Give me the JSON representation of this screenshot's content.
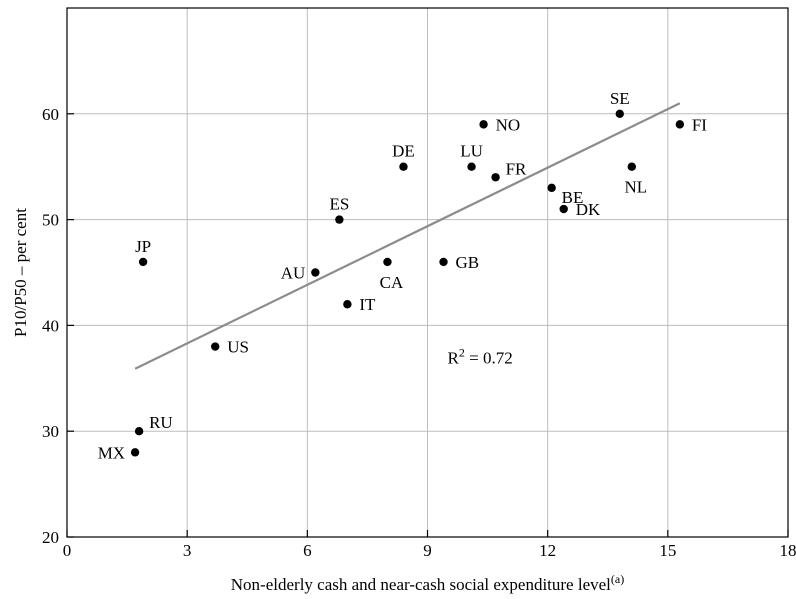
{
  "chart_data": {
    "type": "scatter",
    "xlabel": "Non-elderly cash and near-cash social expenditure level",
    "xlabel_superscript": "(a)",
    "ylabel": "P10/P50 – per cent",
    "xlim": [
      0,
      18
    ],
    "ylim": [
      20,
      70
    ],
    "x_ticks": [
      0,
      3,
      6,
      9,
      12,
      15,
      18
    ],
    "y_ticks": [
      20,
      30,
      40,
      50,
      60
    ],
    "grid": true,
    "points": [
      {
        "label": "JP",
        "x": 1.9,
        "y": 46,
        "label_pos": "above"
      },
      {
        "label": "RU",
        "x": 1.8,
        "y": 30,
        "label_pos": "upper-right"
      },
      {
        "label": "MX",
        "x": 1.7,
        "y": 28,
        "label_pos": "left"
      },
      {
        "label": "US",
        "x": 3.7,
        "y": 38,
        "label_pos": "right"
      },
      {
        "label": "AU",
        "x": 6.2,
        "y": 45,
        "label_pos": "left"
      },
      {
        "label": "ES",
        "x": 6.8,
        "y": 50,
        "label_pos": "above"
      },
      {
        "label": "IT",
        "x": 7.0,
        "y": 42,
        "label_pos": "right"
      },
      {
        "label": "CA",
        "x": 8.0,
        "y": 46,
        "label_pos": "below"
      },
      {
        "label": "DE",
        "x": 8.4,
        "y": 55,
        "label_pos": "above"
      },
      {
        "label": "GB",
        "x": 9.4,
        "y": 46,
        "label_pos": "right"
      },
      {
        "label": "LU",
        "x": 10.1,
        "y": 55,
        "label_pos": "above"
      },
      {
        "label": "NO",
        "x": 10.4,
        "y": 59,
        "label_pos": "right"
      },
      {
        "label": "FR",
        "x": 10.7,
        "y": 54,
        "label_pos": "upper-right"
      },
      {
        "label": "BE",
        "x": 12.1,
        "y": 53,
        "label_pos": "lower-right"
      },
      {
        "label": "DK",
        "x": 12.4,
        "y": 51,
        "label_pos": "right"
      },
      {
        "label": "SE",
        "x": 13.8,
        "y": 60,
        "label_pos": "above"
      },
      {
        "label": "NL",
        "x": 14.1,
        "y": 55,
        "label_pos": "below"
      },
      {
        "label": "FI",
        "x": 15.3,
        "y": 59,
        "label_pos": "right"
      }
    ],
    "trendline": {
      "x": [
        1.7,
        15.3
      ],
      "y": [
        35.9,
        61.0
      ]
    },
    "annotation": {
      "text": "R",
      "superscript": "2",
      "suffix": " = 0.72",
      "x": 9.5,
      "y": 36.4
    }
  }
}
